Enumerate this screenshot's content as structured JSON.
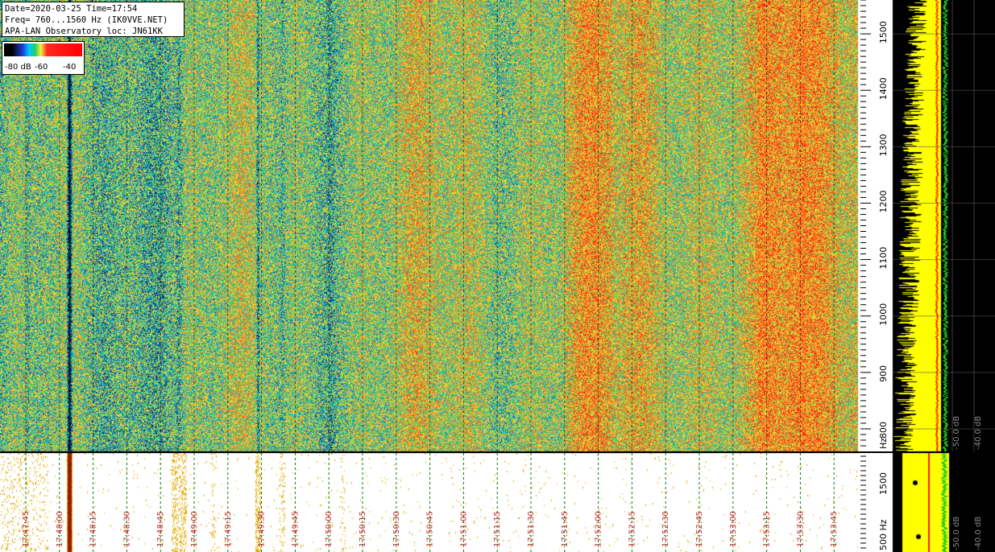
{
  "info": {
    "line1": "Date=2020-03-25 Time=17:54",
    "line2": "Freq= 760...1560 Hz (IK0VVE.NET)",
    "line3": "APA-LAN Observatory loc: JN61KK"
  },
  "colorbar": {
    "labels": [
      "-80 dB",
      "-60",
      "-40"
    ]
  },
  "chart_data": [
    {
      "type": "heatmap",
      "title": "",
      "xlabel": "",
      "ylabel": "Hz",
      "y_ticks": [
        800,
        900,
        1000,
        1100,
        1200,
        1300,
        1400,
        1500
      ],
      "ylim": [
        760,
        1560
      ],
      "x_tick_labels": [
        "17:47:45",
        "17:48:00",
        "17:48:15",
        "17:48:30",
        "17:48:45",
        "17:49:00",
        "17:49:15",
        "17:49:30",
        "17:49:45",
        "17:50:00",
        "17:50:15",
        "17:50:30",
        "17:50:45",
        "17:51:00",
        "17:51:15",
        "17:51:30",
        "17:51:45",
        "17:52:00",
        "17:52:15",
        "17:52:30",
        "17:52:45",
        "17:53:00",
        "17:53:15",
        "17:53:30",
        "17:53:45"
      ],
      "color_scale_db": [
        -80,
        -40
      ],
      "grid": true
    },
    {
      "type": "line",
      "title": "",
      "xlabel": "",
      "ylabel": "",
      "x_ticks": [
        "-50.0 dB",
        "-40.0 dB"
      ],
      "y_ticks": [
        800,
        900,
        1000,
        1100,
        1200,
        1300,
        1400,
        1500
      ],
      "x_ticks_lower": [
        "-50.0 dB",
        "-40.0 dB"
      ],
      "y_ticks_lower": [
        "500 Hz",
        "1500"
      ]
    }
  ],
  "colors": {
    "spectrum": "#ffff00",
    "average": "#ff1a1a",
    "noise": "#22cc22",
    "time_label": "#cc2a2a",
    "grid": "#008000"
  }
}
